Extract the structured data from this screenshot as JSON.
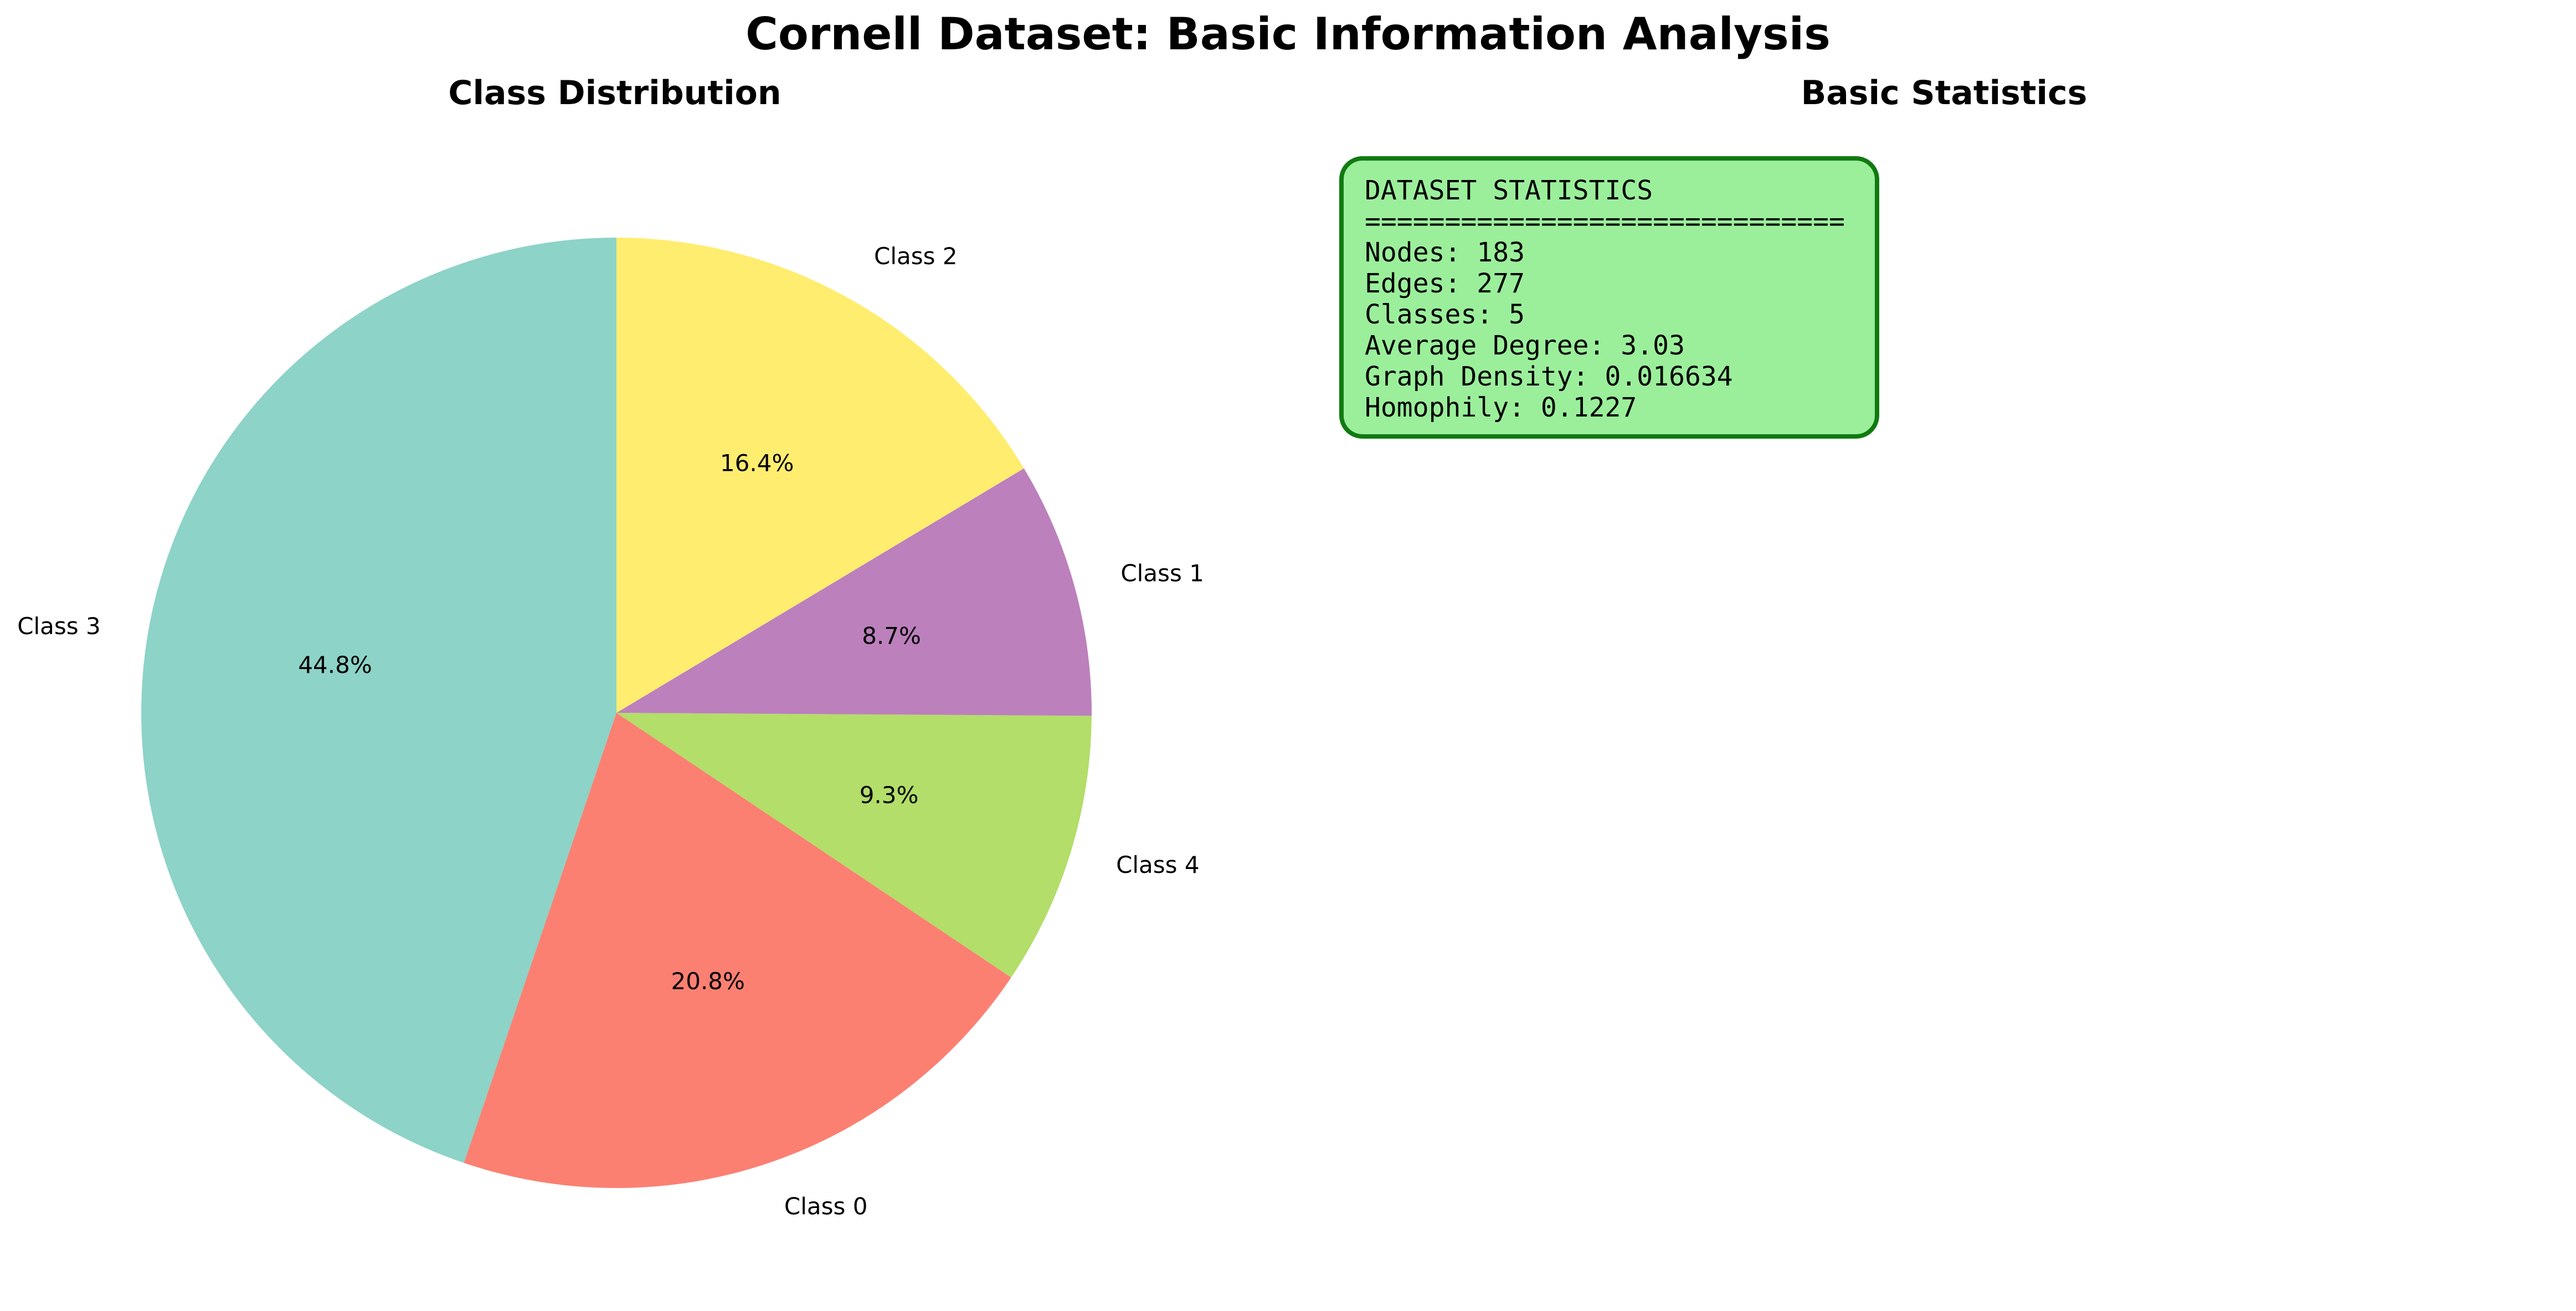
{
  "title": "Cornell Dataset: Basic Information Analysis",
  "pie_panel": {
    "title": "Class Distribution"
  },
  "stats_panel": {
    "title": "Basic Statistics",
    "box_color": "#9bef9b",
    "border_color": "#117a11",
    "lines": [
      "DATASET STATISTICS",
      "==============================",
      "Nodes: 183",
      "Edges: 277",
      "Classes: 5",
      "Average Degree: 3.03",
      "Graph Density: 0.016634",
      "Homophily: 0.1227"
    ]
  },
  "chart_data": {
    "type": "pie",
    "title": "Class Distribution",
    "start_angle": 90,
    "direction": "counterclockwise",
    "slices": [
      {
        "label": "Class 3",
        "value": 44.8,
        "pct_label": "44.8%",
        "color": "#8dd3c7"
      },
      {
        "label": "Class 0",
        "value": 20.8,
        "pct_label": "20.8%",
        "color": "#fb8072"
      },
      {
        "label": "Class 4",
        "value": 9.3,
        "pct_label": "9.3%",
        "color": "#b3de69"
      },
      {
        "label": "Class 1",
        "value": 8.7,
        "pct_label": "8.7%",
        "color": "#bc80bd"
      },
      {
        "label": "Class 2",
        "value": 16.4,
        "pct_label": "16.4%",
        "color": "#ffed6f"
      }
    ]
  }
}
